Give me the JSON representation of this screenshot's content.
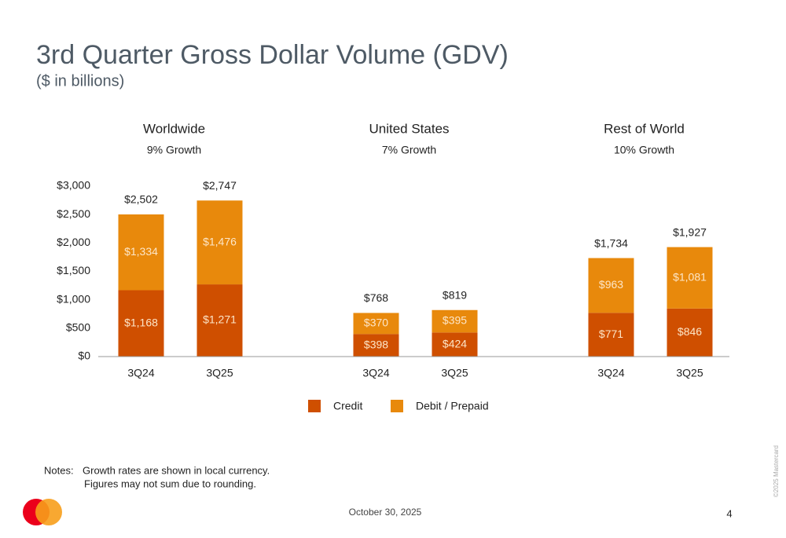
{
  "page": {
    "title": "3rd Quarter Gross Dollar Volume (GDV)",
    "subtitle": "($ in billions)",
    "notes_label": "Notes:",
    "notes": [
      "Growth rates are shown in local currency.",
      "Figures may not sum due to rounding."
    ],
    "date": "October 30, 2025",
    "page_number": "4",
    "copyright": "©2025 Mastercard"
  },
  "chart_data": {
    "type": "bar",
    "stacked": true,
    "groups": [
      {
        "name": "Worldwide",
        "subtitle": "9% Growth"
      },
      {
        "name": "United States",
        "subtitle": "7% Growth"
      },
      {
        "name": "Rest of World",
        "subtitle": "10% Growth"
      }
    ],
    "categories": [
      "3Q24",
      "3Q25",
      "3Q24",
      "3Q25",
      "3Q24",
      "3Q25"
    ],
    "series": [
      {
        "name": "Credit",
        "color": "#cf4f00",
        "values": [
          1168,
          1271,
          398,
          424,
          771,
          846
        ],
        "value_labels": [
          "$1,168",
          "$1,271",
          "$398",
          "$424",
          "$771",
          "$846"
        ]
      },
      {
        "name": "Debit / Prepaid",
        "color": "#e8890c",
        "values": [
          1334,
          1476,
          370,
          395,
          963,
          1081
        ],
        "value_labels": [
          "$1,334",
          "$1,476",
          "$370",
          "$395",
          "$963",
          "$1,081"
        ]
      }
    ],
    "totals": {
      "values": [
        2502,
        2747,
        768,
        819,
        1734,
        1927
      ],
      "value_labels": [
        "$2,502",
        "$2,747",
        "$768",
        "$819",
        "$1,734",
        "$1,927"
      ]
    },
    "ylim": [
      0,
      3000
    ],
    "yticks": [
      {
        "value": 0,
        "label": "$0"
      },
      {
        "value": 500,
        "label": "$500"
      },
      {
        "value": 1000,
        "label": "$1,000"
      },
      {
        "value": 1500,
        "label": "$1,500"
      },
      {
        "value": 2000,
        "label": "$2,000"
      },
      {
        "value": 2500,
        "label": "$2,500"
      },
      {
        "value": 3000,
        "label": "$3,000"
      }
    ]
  }
}
